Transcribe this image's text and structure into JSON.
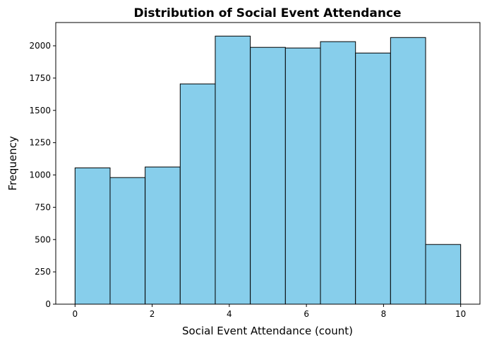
{
  "chart_data": {
    "type": "bar",
    "subtype": "histogram",
    "title": "Distribution of Social Event Attendance",
    "xlabel": "Social Event Attendance (count)",
    "ylabel": "Frequency",
    "bin_edges": [
      0,
      0.909,
      1.818,
      2.727,
      3.636,
      4.545,
      5.455,
      6.364,
      7.273,
      8.182,
      9.091,
      10
    ],
    "values": [
      1055,
      980,
      1062,
      1705,
      2075,
      1988,
      1983,
      2032,
      1944,
      2064,
      462
    ],
    "xlim": [
      -0.5,
      10.5
    ],
    "ylim": [
      0,
      2180
    ],
    "xticks": [
      0,
      2,
      4,
      6,
      8,
      10
    ],
    "xtick_labels": [
      "0",
      "2",
      "4",
      "6",
      "8",
      "10"
    ],
    "yticks": [
      0,
      250,
      500,
      750,
      1000,
      1250,
      1500,
      1750,
      2000
    ],
    "ytick_labels": [
      "0",
      "250",
      "500",
      "750",
      "1000",
      "1250",
      "1500",
      "1750",
      "2000"
    ],
    "bar_color": "#87CEEB",
    "edge_color": "#000000",
    "grid": false,
    "legend": "none"
  }
}
